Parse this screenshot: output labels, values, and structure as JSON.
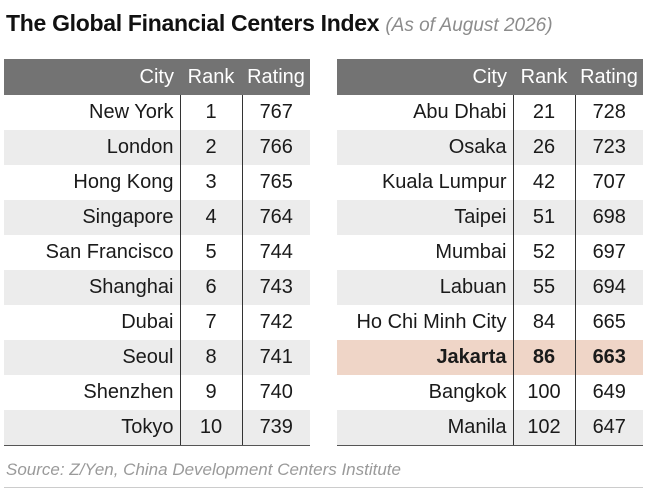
{
  "title": "The Global Financial Centers Index",
  "subtitle": "(As of August 2026)",
  "headers": {
    "city": "City",
    "rank": "Rank",
    "rating": "Rating"
  },
  "left": [
    {
      "city": "New York",
      "rank": "1",
      "rating": "767"
    },
    {
      "city": "London",
      "rank": "2",
      "rating": "766"
    },
    {
      "city": "Hong Kong",
      "rank": "3",
      "rating": "765"
    },
    {
      "city": "Singapore",
      "rank": "4",
      "rating": "764"
    },
    {
      "city": "San Francisco",
      "rank": "5",
      "rating": "744"
    },
    {
      "city": "Shanghai",
      "rank": "6",
      "rating": "743"
    },
    {
      "city": "Dubai",
      "rank": "7",
      "rating": "742"
    },
    {
      "city": "Seoul",
      "rank": "8",
      "rating": "741"
    },
    {
      "city": "Shenzhen",
      "rank": "9",
      "rating": "740"
    },
    {
      "city": "Tokyo",
      "rank": "10",
      "rating": "739"
    }
  ],
  "right": [
    {
      "city": "Abu Dhabi",
      "rank": "21",
      "rating": "728"
    },
    {
      "city": "Osaka",
      "rank": "26",
      "rating": "723"
    },
    {
      "city": "Kuala Lumpur",
      "rank": "42",
      "rating": "707"
    },
    {
      "city": "Taipei",
      "rank": "51",
      "rating": "698"
    },
    {
      "city": "Mumbai",
      "rank": "52",
      "rating": "697"
    },
    {
      "city": "Labuan",
      "rank": "55",
      "rating": "694"
    },
    {
      "city": "Ho Chi Minh City",
      "rank": "84",
      "rating": "665"
    },
    {
      "city": "Jakarta",
      "rank": "86",
      "rating": "663",
      "highlight": true
    },
    {
      "city": "Bangkok",
      "rank": "100",
      "rating": "649"
    },
    {
      "city": "Manila",
      "rank": "102",
      "rating": "647"
    }
  ],
  "colors": {
    "header_bg": "#737373",
    "stripe": "#ececec",
    "highlight": "#efd5c7"
  },
  "source": "Source: Z/Yen, China Development Centers Institute"
}
